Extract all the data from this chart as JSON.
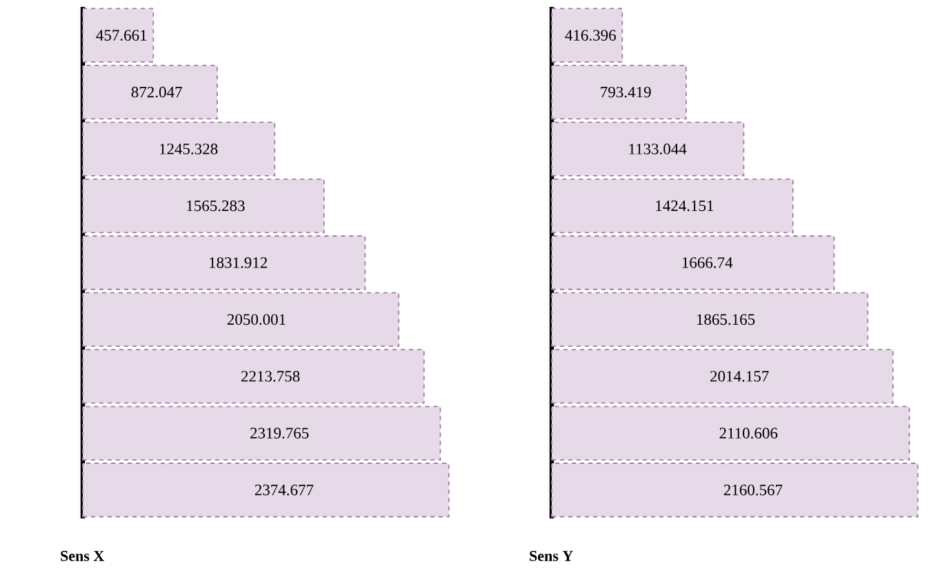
{
  "chart_data": [
    {
      "type": "bar",
      "orientation": "horizontal",
      "xlabel": "Sens X",
      "categories": [
        null,
        null,
        null,
        null,
        null,
        null,
        null,
        null,
        null
      ],
      "values": [
        457.661,
        872.047,
        1245.328,
        1565.283,
        1831.912,
        2050.001,
        2213.758,
        2319.765,
        2374.677
      ],
      "color": "#e6d9e8",
      "line_style": "dashed",
      "data_labels": true
    },
    {
      "type": "bar",
      "orientation": "horizontal",
      "xlabel": "Sens Y",
      "categories": [
        null,
        null,
        null,
        null,
        null,
        null,
        null,
        null,
        null
      ],
      "values": [
        416.396,
        793.419,
        1133.044,
        1424.151,
        1666.74,
        1865.165,
        2014.157,
        2110.606,
        2160.567
      ],
      "color": "#e6d9e8",
      "line_style": "dashed",
      "data_labels": true
    }
  ]
}
